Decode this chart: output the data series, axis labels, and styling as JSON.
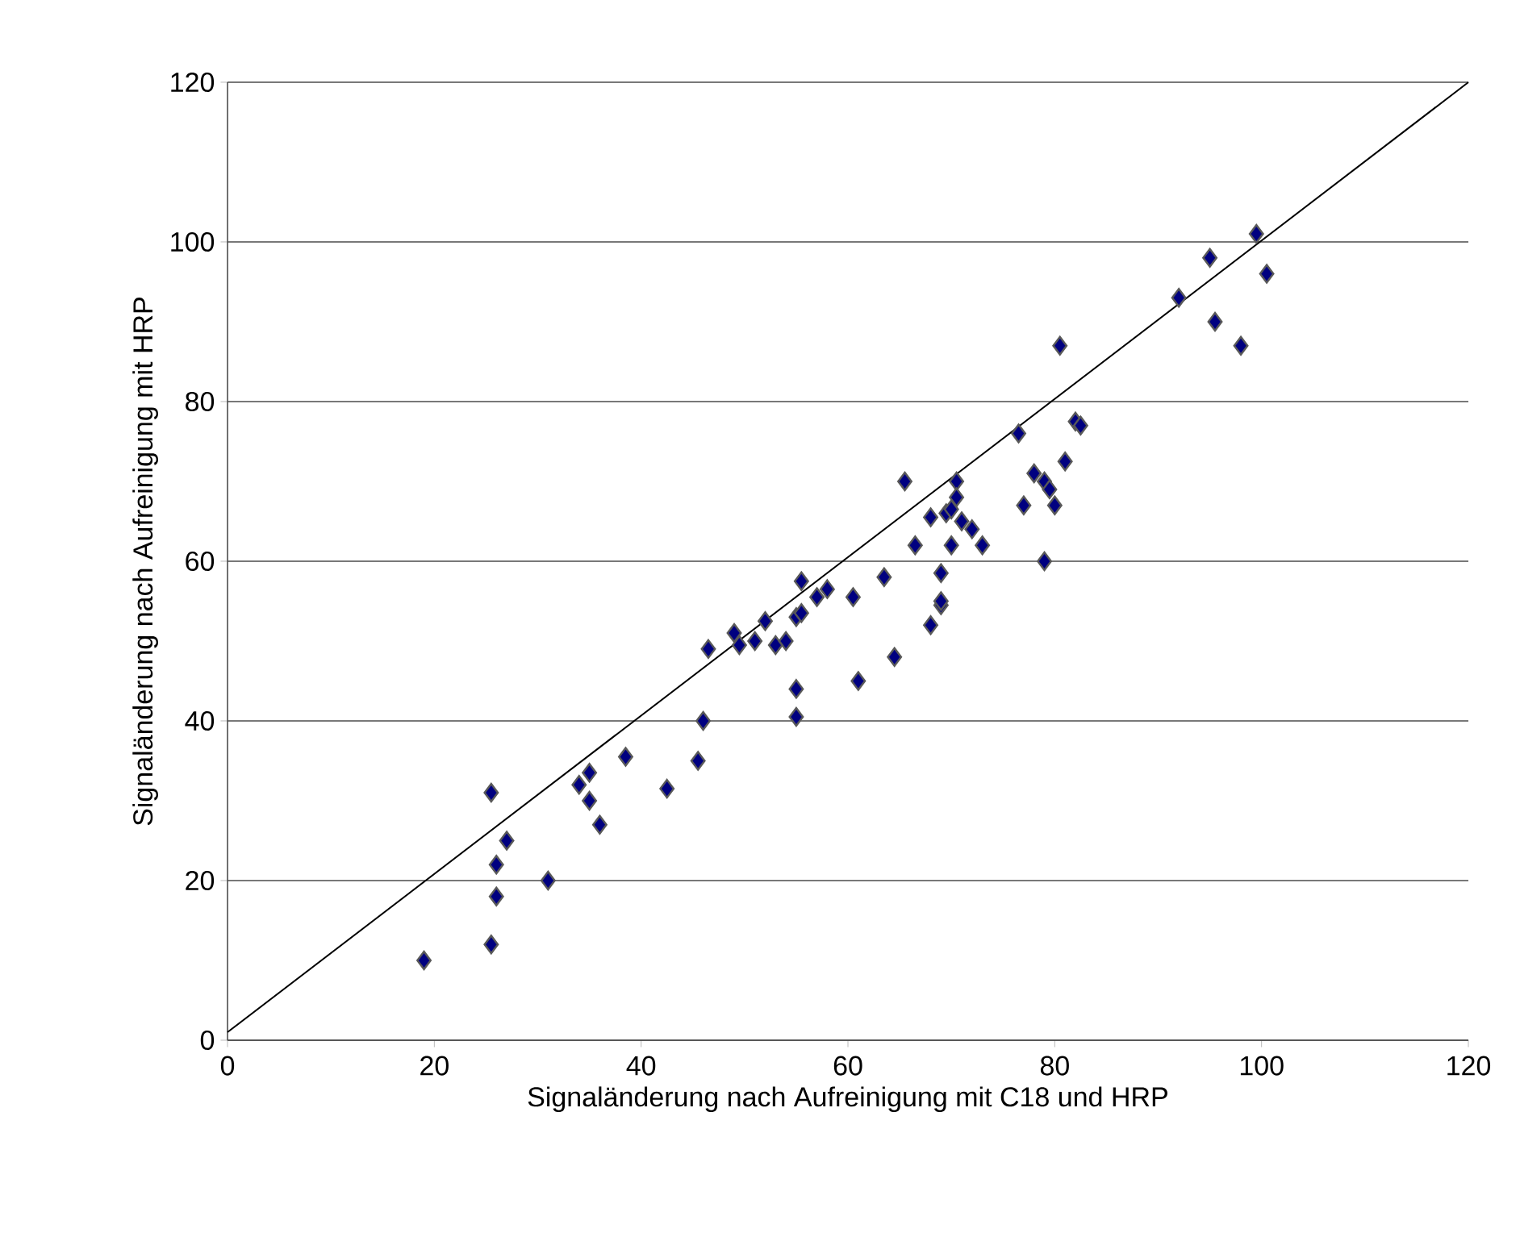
{
  "chart_data": {
    "type": "scatter",
    "xlabel": "Signaländerung nach Aufreinigung mit C18 und HRP",
    "ylabel": "Signaländerung nach Aufreinigung mit HRP",
    "xlim": [
      0,
      120
    ],
    "ylim": [
      0,
      120
    ],
    "xticks": [
      0,
      20,
      40,
      60,
      80,
      100,
      120
    ],
    "yticks": [
      0,
      20,
      40,
      60,
      80,
      100,
      120
    ],
    "grid": "y",
    "series": [
      {
        "color": "#000080",
        "marker": "diamond",
        "x": [
          19,
          25.5,
          26,
          26,
          25.5,
          27,
          31,
          34,
          35,
          35,
          36,
          38.5,
          42.5,
          45.5,
          46,
          46.5,
          49,
          49.5,
          51,
          52,
          53,
          54,
          55,
          55.5,
          55,
          55,
          55.5,
          57,
          58,
          60.5,
          61,
          63.5,
          64.5,
          65.5,
          66.5,
          68,
          68,
          69,
          69,
          69,
          69.5,
          70,
          70,
          70.5,
          70.5,
          71,
          72,
          73,
          76.5,
          77,
          78,
          79,
          79,
          79.5,
          80,
          81,
          80.5,
          82,
          82.5,
          92,
          95,
          95.5,
          98,
          99.5,
          100.5
        ],
        "values": [
          10,
          31,
          22,
          18,
          12,
          25,
          20,
          32,
          33.5,
          30,
          27,
          35.5,
          31.5,
          35,
          40,
          49,
          51,
          49.5,
          50,
          52.5,
          49.5,
          50,
          53,
          53.5,
          44,
          40.5,
          57.5,
          55.5,
          56.5,
          55.5,
          45,
          58,
          48,
          70,
          62,
          65.5,
          52,
          54.5,
          55,
          58.5,
          66,
          66.5,
          62,
          70,
          68,
          65,
          64,
          62,
          76,
          67,
          71,
          70,
          60,
          69,
          67,
          72.5,
          87,
          77.5,
          77,
          93,
          98,
          90,
          87,
          101,
          96
        ]
      },
      {
        "type": "line",
        "color": "#000000",
        "marker": "none",
        "line_style": "solid",
        "x": [
          0,
          120
        ],
        "values": [
          1,
          120
        ]
      }
    ]
  }
}
